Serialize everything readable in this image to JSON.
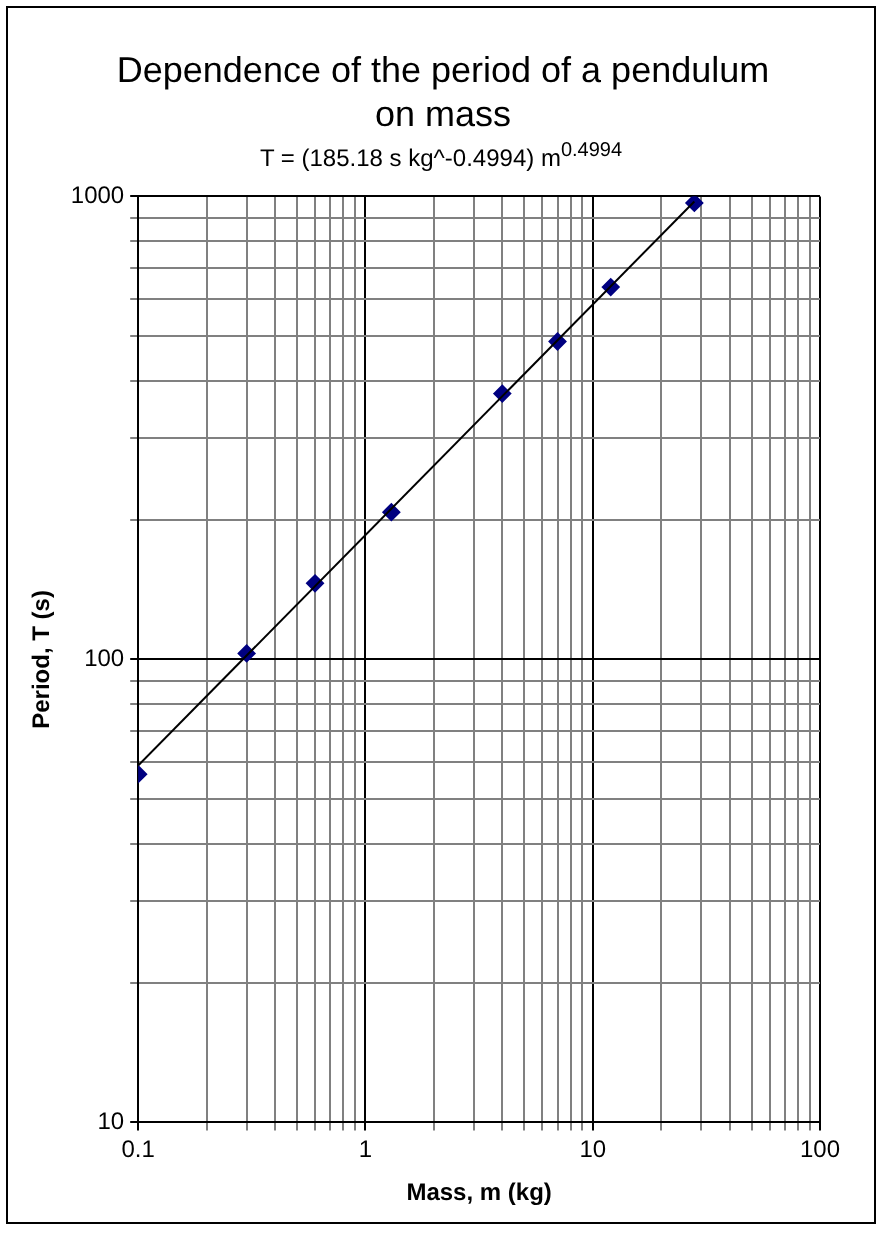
{
  "chart_data": {
    "type": "scatter",
    "title": "Dependence of the period of a pendulum on mass",
    "subtitle": "T = (185.18 s kg^-0.4994) m$^{0.4994}$",
    "xlabel": "Mass, m (kg)",
    "ylabel": "Period, T (s)",
    "log": "xy",
    "grid": true,
    "legend": false,
    "marker": "diamond",
    "xlim": [
      0.1,
      100
    ],
    "ylim": [
      10,
      1000
    ],
    "xticks": [
      0.1,
      {
        "value": 0.2,
        "label": null
      },
      {
        "value": 0.3,
        "label": null
      },
      {
        "value": 0.4,
        "label": null
      },
      {
        "value": 0.5,
        "label": null
      },
      {
        "value": 0.6,
        "label": null
      },
      {
        "value": 0.7,
        "label": null
      },
      {
        "value": 0.8,
        "label": null
      },
      {
        "value": 0.9,
        "label": null
      },
      1,
      {
        "value": 2,
        "label": null
      },
      {
        "value": 3,
        "label": null
      },
      {
        "value": 4,
        "label": null
      },
      {
        "value": 5,
        "label": null
      },
      {
        "value": 6,
        "label": null
      },
      {
        "value": 7,
        "label": null
      },
      {
        "value": 8,
        "label": null
      },
      {
        "value": 9,
        "label": null
      },
      10,
      {
        "value": 20,
        "label": null
      },
      {
        "value": 30,
        "label": null
      },
      {
        "value": 40,
        "label": null
      },
      {
        "value": 50,
        "label": null
      },
      {
        "value": 60,
        "label": null
      },
      {
        "value": 70,
        "label": null
      },
      {
        "value": 80,
        "label": null
      },
      {
        "value": 90,
        "label": null
      },
      100
    ],
    "yticks": [
      10,
      {
        "value": 20,
        "label": null
      },
      {
        "value": 30,
        "label": null
      },
      {
        "value": 40,
        "label": null
      },
      {
        "value": 50,
        "label": null
      },
      {
        "value": 60,
        "label": null
      },
      {
        "value": 70,
        "label": null
      },
      {
        "value": 80,
        "label": null
      },
      {
        "value": 90,
        "label": null
      },
      100,
      {
        "value": 200,
        "label": null
      },
      {
        "value": 300,
        "label": null
      },
      {
        "value": 400,
        "label": null
      },
      {
        "value": 500,
        "label": null
      },
      {
        "value": 600,
        "label": null
      },
      {
        "value": 700,
        "label": null
      },
      {
        "value": 800,
        "label": null
      },
      {
        "value": 900,
        "label": null
      },
      1000
    ],
    "series": [
      {
        "color": "#000080",
        "x": [
          0.1,
          0.3,
          0.6,
          1.3,
          4,
          7,
          12,
          28
        ],
        "values": [
          56.5,
          103,
          146,
          208,
          375,
          486,
          637,
          968
        ]
      },
      {
        "type": "line",
        "color": "#000000",
        "marker": "none",
        "x": [
          0.1,
          28
        ],
        "values": [
          59,
          975
        ]
      }
    ]
  }
}
